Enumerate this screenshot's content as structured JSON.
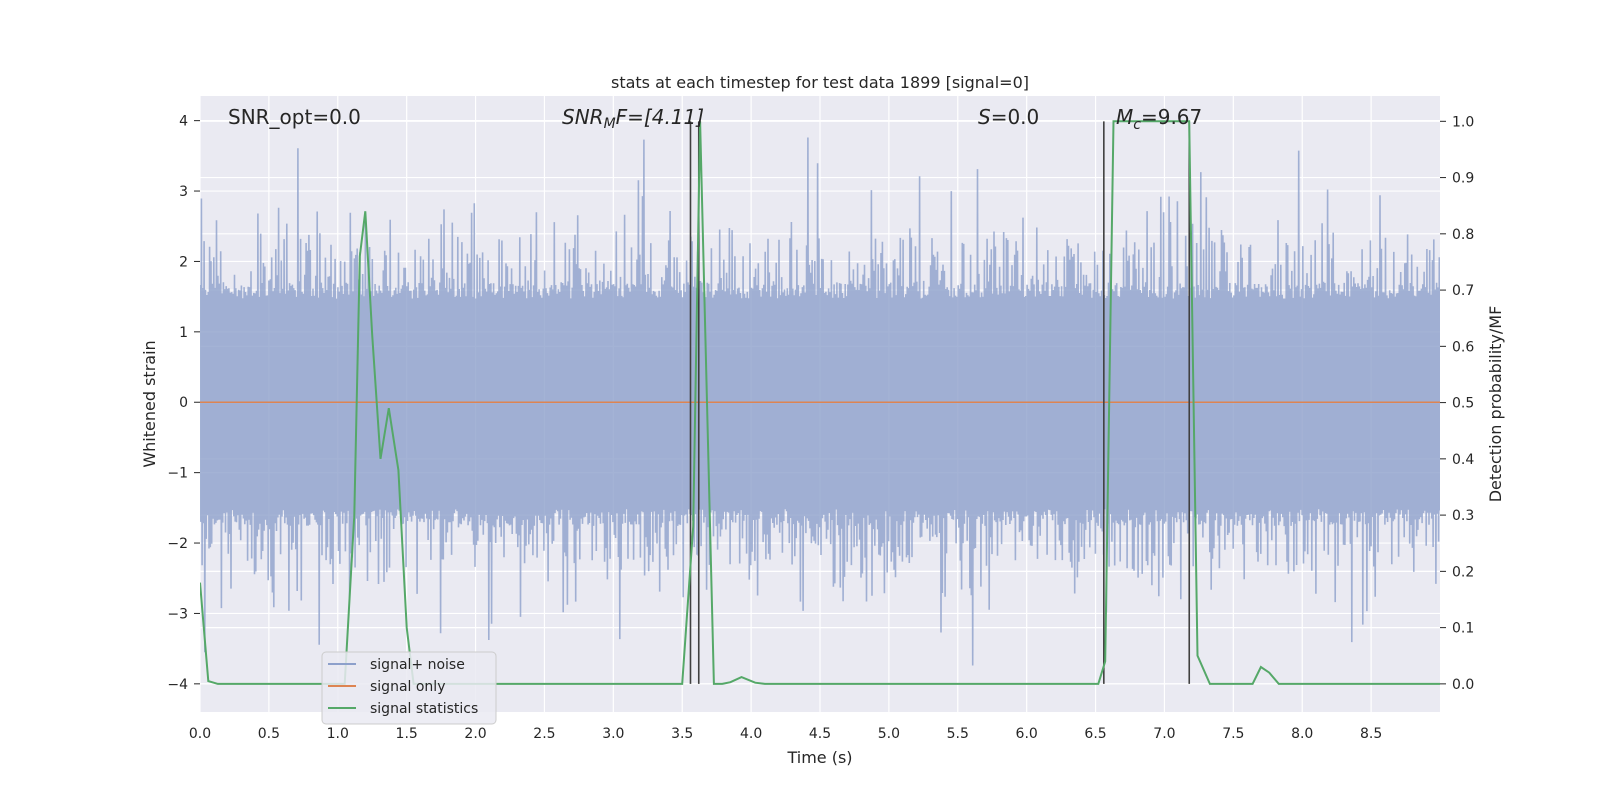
{
  "chart_data": {
    "type": "line",
    "title": "stats at each timestep for test data 1899 [signal=0]",
    "xlabel": "Time (s)",
    "ylabel": "Whitened strain",
    "y2label": "Detection probability/MF",
    "xlim": [
      0.0,
      9.0
    ],
    "ylim": [
      -4.4,
      4.35
    ],
    "y2lim": [
      -0.05,
      1.045
    ],
    "xticks": [
      "0.0",
      "0.5",
      "1.0",
      "1.5",
      "2.0",
      "2.5",
      "3.0",
      "3.5",
      "4.0",
      "4.5",
      "5.0",
      "5.5",
      "6.0",
      "6.5",
      "7.0",
      "7.5",
      "8.0",
      "8.5"
    ],
    "yticks": [
      "4",
      "3",
      "2",
      "1",
      "0",
      "−1",
      "−2",
      "−3",
      "−4"
    ],
    "y2ticks": [
      "1.0",
      "0.9",
      "0.8",
      "0.7",
      "0.6",
      "0.5",
      "0.4",
      "0.3",
      "0.2",
      "0.1",
      "0.0"
    ],
    "grid": true,
    "legend_position": "lower-left",
    "annotations": {
      "snr_opt": "SNR_opt=0.0",
      "snr_mf_base": "SNR",
      "snr_mf_sub": "M",
      "snr_mf_rest": "F=[4.11]",
      "s_base": "S",
      "s_rest": "=0.0",
      "mc_base": "M",
      "mc_sub": "c",
      "mc_rest": "=9.67"
    },
    "series": [
      {
        "name": "signal+ noise",
        "axis": "left",
        "color": "#8da0cb",
        "description": "whitened strain noise, roughly ±1.6 band with spikes up to ±4",
        "band": [
          -1.6,
          1.55
        ],
        "peak_extent": [
          -4.0,
          3.9
        ]
      },
      {
        "name": "signal only",
        "axis": "left",
        "color": "#dd8452",
        "values_constant": 0.0
      },
      {
        "name": "signal statistics",
        "axis": "right",
        "color": "#55a868",
        "x": [
          0.0,
          0.06,
          0.13,
          0.9,
          1.05,
          1.12,
          1.16,
          1.2,
          1.25,
          1.31,
          1.37,
          1.44,
          1.5,
          1.55,
          1.62,
          3.45,
          3.5,
          3.58,
          3.63,
          3.68,
          3.73,
          3.79,
          3.85,
          3.93,
          4.03,
          4.1,
          6.52,
          6.57,
          6.63,
          7.18,
          7.24,
          7.33,
          7.64,
          7.7,
          7.76,
          7.83,
          9.0
        ],
        "values": [
          0.18,
          0.005,
          0.0,
          0.0,
          0.0,
          0.3,
          0.76,
          0.84,
          0.62,
          0.4,
          0.49,
          0.38,
          0.1,
          0.0,
          0.0,
          0.0,
          0.0,
          0.28,
          1.0,
          0.5,
          0.0,
          0.0,
          0.003,
          0.012,
          0.002,
          0.0,
          0.0,
          0.04,
          1.0,
          1.0,
          0.05,
          0.0,
          0.0,
          0.03,
          0.02,
          0.0,
          0.0
        ]
      }
    ],
    "vertical_markers": [
      3.56,
      3.62,
      6.56,
      7.18
    ],
    "colors": {
      "background": "#eaeaf2",
      "grid": "#ffffff",
      "marker_lines": "#404040"
    }
  }
}
